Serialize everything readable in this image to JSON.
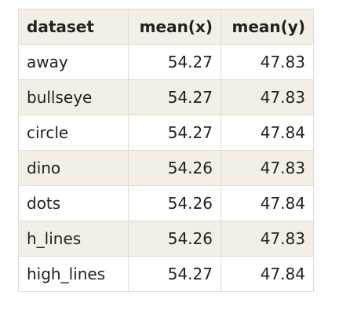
{
  "table": {
    "headers": [
      "dataset",
      "mean(x)",
      "mean(y)"
    ],
    "rows": [
      [
        "away",
        "54.27",
        "47.83"
      ],
      [
        "bullseye",
        "54.27",
        "47.83"
      ],
      [
        "circle",
        "54.27",
        "47.84"
      ],
      [
        "dino",
        "54.26",
        "47.83"
      ],
      [
        "dots",
        "54.26",
        "47.84"
      ],
      [
        "h_lines",
        "54.26",
        "47.83"
      ],
      [
        "high_lines",
        "54.27",
        "47.84"
      ]
    ]
  },
  "colors": {
    "header_bg": "#f3eee6",
    "stripe_bg": "#f3eee6",
    "row_bg": "#ffffff",
    "border": "#e3ddd4",
    "text": "#222222"
  }
}
